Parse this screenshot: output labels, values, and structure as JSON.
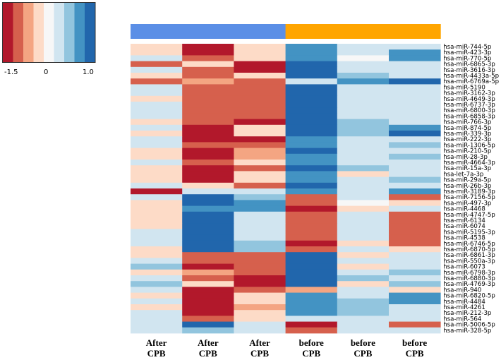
{
  "legend": {
    "palette": [
      "#b2182b",
      "#d6604d",
      "#f4a582",
      "#fddbc7",
      "#f7f7f7",
      "#d1e5f0",
      "#92c5de",
      "#4393c3",
      "#2166ac"
    ],
    "ticks": [
      "-1.5",
      "0",
      "1.0"
    ]
  },
  "chart_data": {
    "type": "heatmap",
    "title": "",
    "xlabel": "",
    "ylabel": "",
    "group_bar": [
      {
        "label": "After CPB",
        "color": "#5b8fe6"
      },
      {
        "label": "before CPB",
        "color": "#ffa500"
      }
    ],
    "columns": [
      {
        "line1": "After",
        "line2": "CPB"
      },
      {
        "line1": "After",
        "line2": "CPB"
      },
      {
        "line1": "After",
        "line2": "CPB"
      },
      {
        "line1": "before",
        "line2": "CPB"
      },
      {
        "line1": "before",
        "line2": "CPB"
      },
      {
        "line1": "before",
        "line2": "CPB"
      }
    ],
    "rows": [
      "hsa-miR-744-5p",
      "hsa-miR-423-3p",
      "hsa-miR-770-5p",
      "hsa-miR-6865-3p",
      "hsa-miR-3616-3p",
      "hsa-miR-4433a-5p",
      "hsa-miR-6769a-5p",
      "hsa-miR-5190",
      "hsa-miR-3162-3p",
      "hsa-miR-4649-3p",
      "hsa-miR-6737-3p",
      "hsa-miR-6800-3p",
      "hsa-miR-6858-3p",
      "hsa-miR-766-3p",
      "hsa-miR-874-5p",
      "hsa-miR-339-3p",
      "hsa-miR-222-3p",
      "hsa-miR-1306-5p",
      "hsa-miR-210-5p",
      "hsa-miR-28-3p",
      "hsa-miR-4664-3p",
      "hsa-miR-15a-3p",
      "hsa-let-7a-3p",
      "hsa-miR-29a-5p",
      "hsa-miR-26b-3p",
      "hsa-miR-3189-3p",
      "hsa-miR-7156-5p",
      "hsa-miR-497-3p",
      "hsa-miR-4468",
      "hsa-miR-4747-5p",
      "hsa-miR-6134",
      "hsa-miR-6074",
      "hsa-miR-5195-3p",
      "hsa-miR-4538",
      "hsa-miR-6746-5p",
      "hsa-miR-6870-5p",
      "hsa-miR-6861-3p",
      "hsa-miR-550a-3p",
      "hsa-miR-6073",
      "hsa-miR-6798-3p",
      "hsa-miR-6880-3p",
      "hsa-miR-4769-3p",
      "hsa-miR-940",
      "hsa-miR-6820-5p",
      "hsa-miR-4484",
      "hsa-miR-4261",
      "hsa-miR-212-3p",
      "hsa-miR-564",
      "hsa-miR-5006-5p",
      "hsa-miR-328-5p"
    ],
    "values": [
      [
        -0.5,
        -1.5,
        -0.3,
        1.2,
        0.3,
        0.5
      ],
      [
        -0.5,
        -1.5,
        -0.5,
        1.2,
        0.3,
        1.2
      ],
      [
        0.2,
        -1.2,
        -0.3,
        1.2,
        0.1,
        1.2
      ],
      [
        -1.2,
        -0.4,
        -1.5,
        1.5,
        0.2,
        0.2
      ],
      [
        0.3,
        -1.2,
        -1.5,
        1.5,
        0.4,
        0.2
      ],
      [
        -0.4,
        -1.2,
        -0.3,
        1.5,
        0.7,
        0.4
      ],
      [
        -1.2,
        -0.9,
        -1.2,
        0.5,
        1.2,
        1.5
      ],
      [
        0.3,
        -1.2,
        -1.2,
        1.5,
        0.2,
        0.4
      ],
      [
        0.2,
        -1.2,
        -1.2,
        1.5,
        0.2,
        0.2
      ],
      [
        -0.2,
        -1.2,
        -1.2,
        1.5,
        0.2,
        0.3
      ],
      [
        0.3,
        -1.2,
        -1.2,
        1.5,
        0.2,
        0.5
      ],
      [
        0.3,
        -1.2,
        -1.2,
        1.5,
        0.2,
        0.2
      ],
      [
        0.3,
        -1.2,
        -1.2,
        1.5,
        0.2,
        0.2
      ],
      [
        -0.3,
        -1.2,
        -1.5,
        1.5,
        0.6,
        0.2
      ],
      [
        0.2,
        -1.5,
        -0.3,
        1.5,
        0.6,
        1.2
      ],
      [
        -0.5,
        -1.5,
        -0.5,
        1.5,
        0.6,
        1.5
      ],
      [
        0.3,
        -1.5,
        -1.5,
        1.2,
        0.4,
        0.2
      ],
      [
        0.3,
        -1.2,
        -1.2,
        1.2,
        0.2,
        0.8
      ],
      [
        -0.5,
        -1.5,
        -0.6,
        1.5,
        0.3,
        0.2
      ],
      [
        -0.3,
        -1.5,
        -0.6,
        1.2,
        0.2,
        0.8
      ],
      [
        0.5,
        -1.2,
        -0.2,
        1.2,
        0.4,
        0.2
      ],
      [
        -0.5,
        -1.5,
        -1.2,
        1.5,
        0.6,
        0.3
      ],
      [
        -0.5,
        -1.5,
        -0.3,
        1.2,
        -0.3,
        0.3
      ],
      [
        -0.5,
        -1.5,
        -0.5,
        1.2,
        0.3,
        0.6
      ],
      [
        0.3,
        -0.3,
        -1.2,
        1.5,
        0.3,
        0.5
      ],
      [
        -1.5,
        0.3,
        0.3,
        1.2,
        0.2,
        1.2
      ],
      [
        0.2,
        1.5,
        0.7,
        -1.2,
        0.2,
        -1.2
      ],
      [
        -0.3,
        1.5,
        1.2,
        -1.2,
        0.1,
        -0.5
      ],
      [
        -0.5,
        1.2,
        1.2,
        -1.5,
        -0.3,
        0.3
      ],
      [
        -0.3,
        1.5,
        0.5,
        -1.2,
        0.3,
        -1.2
      ],
      [
        -0.2,
        1.5,
        0.3,
        -1.2,
        0.3,
        -1.2
      ],
      [
        -0.3,
        1.5,
        0.3,
        -1.2,
        0.3,
        -1.2
      ],
      [
        0.3,
        1.5,
        0.3,
        -1.2,
        0.3,
        -1.2
      ],
      [
        0.3,
        1.5,
        0.3,
        -1.2,
        0.3,
        -1.2
      ],
      [
        0.3,
        1.5,
        0.7,
        -1.5,
        -0.3,
        -1.2
      ],
      [
        -0.3,
        1.5,
        0.8,
        -1.2,
        0.3,
        -0.4
      ],
      [
        -0.3,
        -1.2,
        -1.2,
        1.5,
        -0.3,
        0.2
      ],
      [
        0.4,
        -1.2,
        -1.2,
        1.5,
        0.3,
        0.2
      ],
      [
        0.6,
        -1.5,
        -1.2,
        1.5,
        -0.3,
        0.5
      ],
      [
        -0.3,
        -0.6,
        -1.2,
        1.5,
        0.3,
        0.6
      ],
      [
        0.3,
        -1.2,
        -1.5,
        1.5,
        0.6,
        0.3
      ],
      [
        0.6,
        -0.5,
        -1.5,
        1.5,
        -0.5,
        0.6
      ],
      [
        0.3,
        -1.5,
        -1.2,
        -0.6,
        0.3,
        -0.3
      ],
      [
        -0.3,
        -1.5,
        -0.5,
        1.2,
        0.4,
        1.2
      ],
      [
        0.4,
        -1.5,
        -0.5,
        1.2,
        0.6,
        1.2
      ],
      [
        -0.3,
        -1.5,
        -0.6,
        1.2,
        0.6,
        0.3
      ],
      [
        0.3,
        -1.5,
        -0.5,
        1.2,
        0.6,
        0.3
      ],
      [
        0.3,
        -1.2,
        -0.5,
        0.3,
        0.4,
        0.3
      ],
      [
        0.3,
        1.5,
        0.5,
        -1.5,
        0.3,
        -1.2
      ],
      [
        0.3,
        0.6,
        0.3,
        -1.2,
        0.3,
        0.3
      ]
    ],
    "zlim": [
      -1.5,
      1.5
    ],
    "legend_position": "top-left"
  }
}
